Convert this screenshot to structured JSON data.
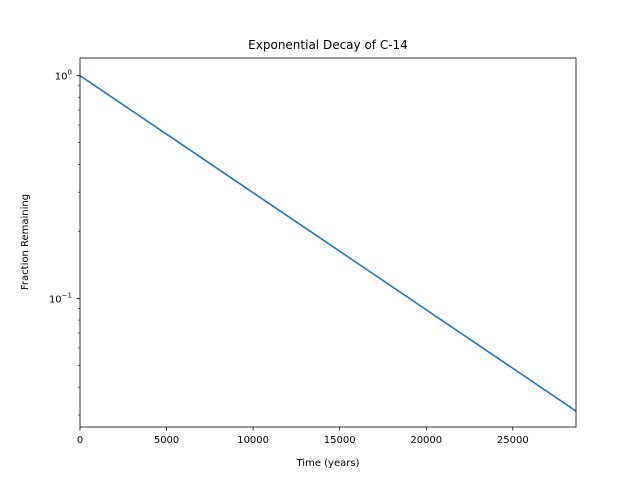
{
  "chart_data": {
    "type": "line",
    "title": "Exponential Decay of C-14",
    "xlabel": "Time (years)",
    "ylabel": "Fraction Remaining",
    "yscale": "log",
    "xlim": [
      0,
      28650
    ],
    "ylim": [
      0.0265,
      1.2
    ],
    "x_ticks": [
      0,
      5000,
      10000,
      15000,
      20000,
      25000
    ],
    "x_tick_labels": [
      "0",
      "5000",
      "10000",
      "15000",
      "20000",
      "25000"
    ],
    "y_ticks": [
      1,
      0.1
    ],
    "y_tick_labels": [
      {
        "base": "10",
        "exp": "0"
      },
      {
        "base": "10",
        "exp": "−1"
      }
    ],
    "grid": false,
    "series": [
      {
        "color": "#1f77b4",
        "x": [
          0,
          5730,
          11460,
          17190,
          22920,
          28650
        ],
        "y": [
          1.0,
          0.5,
          0.25,
          0.125,
          0.0625,
          0.03125
        ]
      }
    ]
  }
}
